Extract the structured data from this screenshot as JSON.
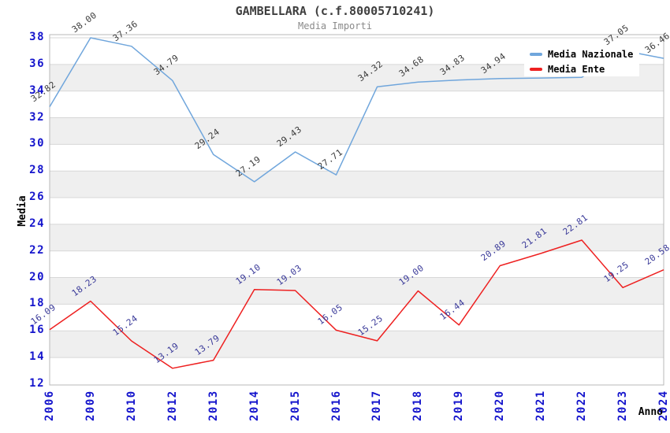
{
  "chart": {
    "title": "GAMBELLARA (c.f.80005710241)",
    "subtitle": "Media Importi"
  },
  "chart_data": {
    "type": "line",
    "categories": [
      "2006",
      "2009",
      "2010",
      "2012",
      "2013",
      "2014",
      "2015",
      "2016",
      "2017",
      "2018",
      "2019",
      "2020",
      "2021",
      "2022",
      "2023",
      "2024"
    ],
    "xlabel": "Anno",
    "ylabel": "Media",
    "ylim": [
      12,
      38
    ],
    "ytick_step": 2,
    "yticks": [
      12,
      14,
      16,
      18,
      20,
      22,
      24,
      26,
      28,
      30,
      32,
      34,
      36,
      38
    ],
    "grid": true,
    "background_bands": "alternating gray bands every 2 units (34-36, 30-32, 26-28, 22-24, 18-20, 14-16)",
    "legend_position": "top-right inside plot",
    "series": [
      {
        "name": "Media Nazionale",
        "color": "#70a6dc",
        "label_color": "#3b3b3b",
        "values": [
          32.82,
          38.0,
          37.36,
          34.79,
          29.24,
          27.19,
          29.43,
          27.71,
          34.32,
          34.68,
          34.83,
          34.94,
          34.98,
          35.03,
          37.05,
          36.46
        ],
        "value_labels": [
          "32.82",
          "38.00",
          "37.36",
          "34.79",
          "29.24",
          "27.19",
          "29.43",
          "27.71",
          "34.32",
          "34.68",
          "34.83",
          "34.94",
          "",
          "",
          "37.05",
          "36.46"
        ],
        "note": "2021 and 2022 point labels are hidden behind the legend box; those two values are estimated from the visible line path"
      },
      {
        "name": "Media Ente",
        "color": "#ee2020",
        "label_color": "#3a3a99",
        "values": [
          16.09,
          18.23,
          15.24,
          13.19,
          13.79,
          19.1,
          19.03,
          16.05,
          15.25,
          19.0,
          16.44,
          20.89,
          21.81,
          22.81,
          19.25,
          20.58
        ],
        "value_labels": [
          "16.09",
          "18.23",
          "15.24",
          "13.19",
          "13.79",
          "19.10",
          "19.03",
          "16.05",
          "15.25",
          "19.00",
          "16.44",
          "20.89",
          "21.81",
          "22.81",
          "19.25",
          "20.58"
        ]
      }
    ],
    "colors": {
      "tick_label": "#1414cc",
      "band_gray": "#efefef",
      "gridline": "#d7d7d7",
      "plot_border": "#b8b8b8",
      "title": "#3f3f3f",
      "subtitle": "#8a8a8a",
      "axis_title": "#000000",
      "legend_background": "#ffffff"
    }
  },
  "legend": {
    "items": [
      {
        "label": "Media Nazionale"
      },
      {
        "label": "Media Ente"
      }
    ]
  }
}
